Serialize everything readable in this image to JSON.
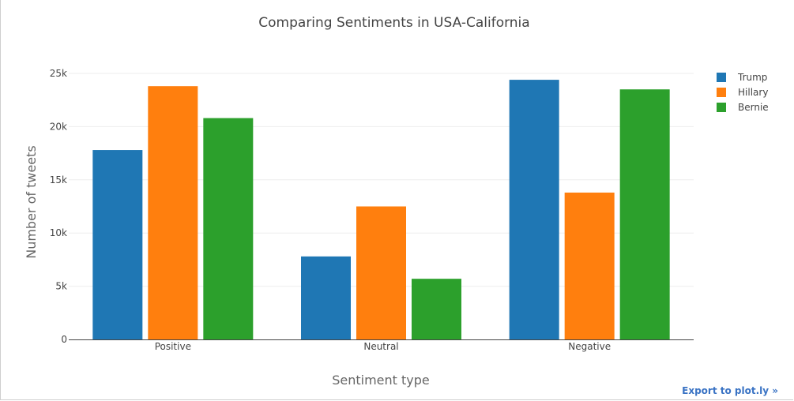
{
  "chart_data": {
    "type": "bar",
    "title": "Comparing Sentiments in USA-California",
    "xlabel": "Sentiment type",
    "ylabel": "Number of tweets",
    "categories": [
      "Positive",
      "Neutral",
      "Negative"
    ],
    "series": [
      {
        "name": "Trump",
        "color": "#1f77b4",
        "values": [
          17800,
          7800,
          24400
        ]
      },
      {
        "name": "Hillary",
        "color": "#ff7f0e",
        "values": [
          23800,
          12500,
          13800
        ]
      },
      {
        "name": "Bernie",
        "color": "#2ca02c",
        "values": [
          20800,
          5700,
          23500
        ]
      }
    ],
    "ylim": [
      0,
      25000
    ],
    "yticks": [
      0,
      5000,
      10000,
      15000,
      20000,
      25000
    ],
    "ytick_labels": [
      "0",
      "5k",
      "10k",
      "15k",
      "20k",
      "25k"
    ],
    "grid": true,
    "legend_position": "top-right"
  },
  "export_label": "Export to plot.ly »"
}
